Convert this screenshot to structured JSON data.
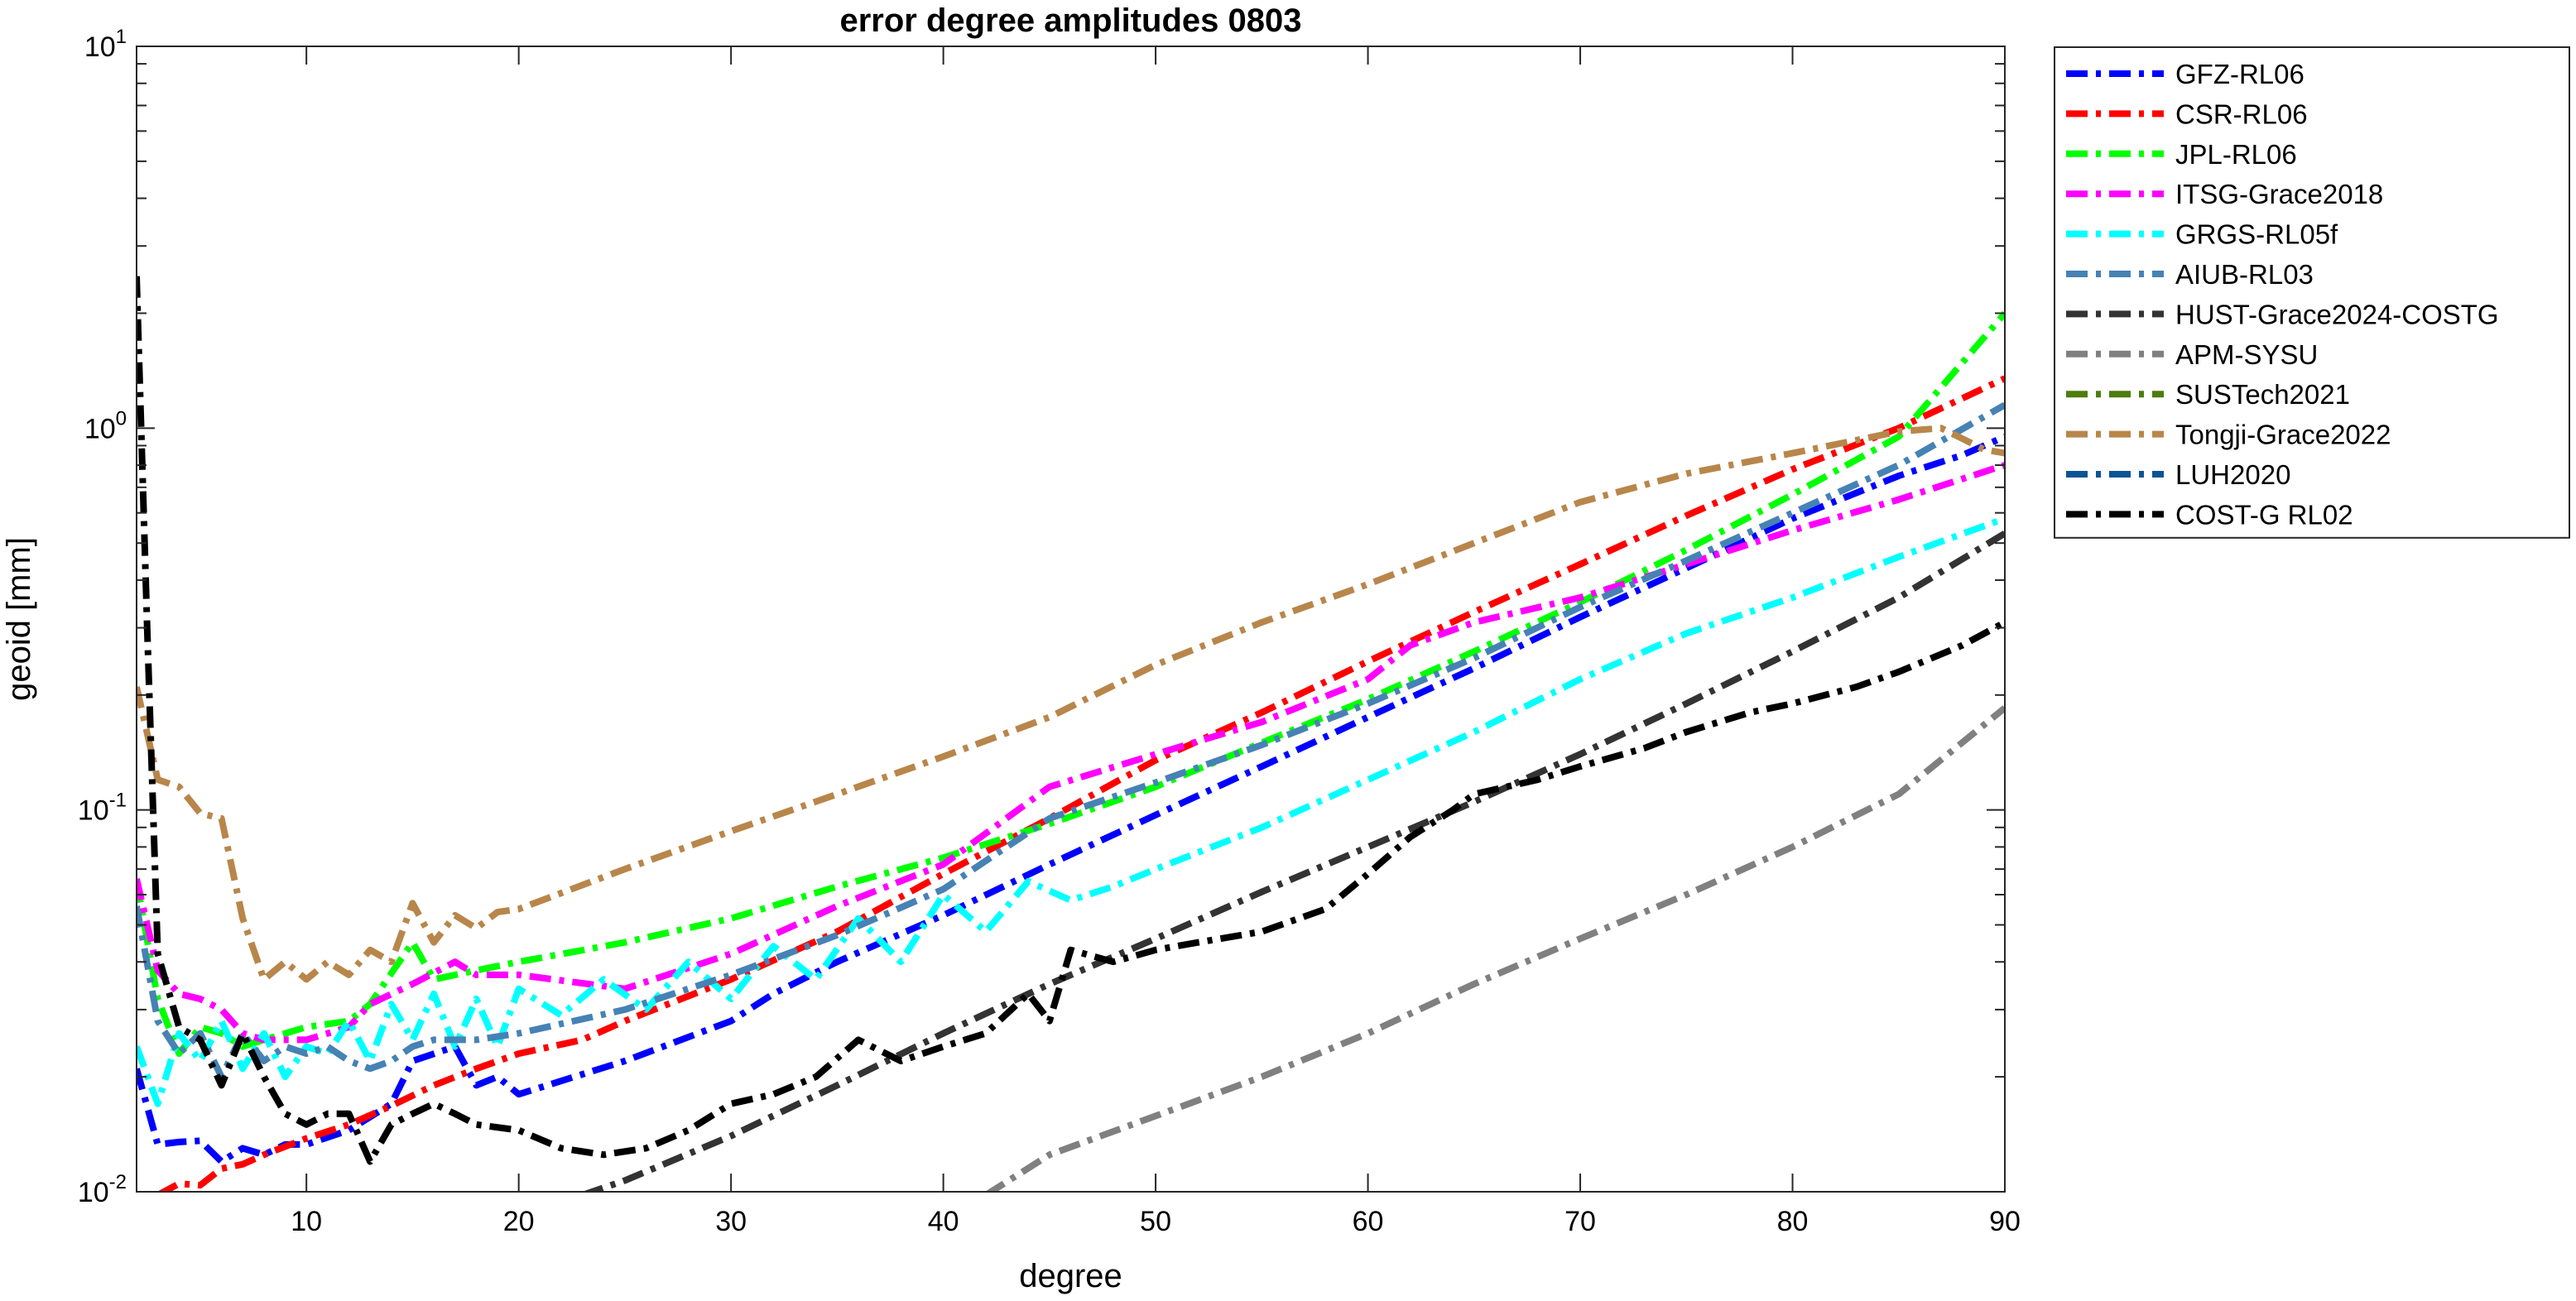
{
  "chart_data": {
    "type": "line",
    "title": "error degree amplitudes 0803",
    "xlabel": "degree",
    "ylabel": "geoid [mm]",
    "xlim": [
      2,
      90
    ],
    "ylim": [
      0.01,
      10
    ],
    "yscale": "log",
    "grid": false,
    "legend_position": "outside-right",
    "x_ticks": [
      10,
      20,
      30,
      40,
      50,
      60,
      70,
      80,
      90
    ],
    "x_tick_labels": [
      "10",
      "20",
      "30",
      "40",
      "50",
      "60",
      "70",
      "80",
      "90"
    ],
    "y_tick_labels": [
      {
        "base": "10",
        "exp": "1",
        "value": 10
      },
      {
        "base": "10",
        "exp": "0",
        "value": 1
      },
      {
        "base": "10",
        "exp": "-1",
        "value": 0.1
      },
      {
        "base": "10",
        "exp": "-2",
        "value": 0.01
      }
    ],
    "series": [
      {
        "name": "GFZ-RL06",
        "color": "#0000ff",
        "points": [
          [
            2,
            0.021
          ],
          [
            3,
            0.0133
          ],
          [
            4,
            0.0135
          ],
          [
            5,
            0.0136
          ],
          [
            6,
            0.012
          ],
          [
            7,
            0.013
          ],
          [
            8,
            0.0125
          ],
          [
            9,
            0.0133
          ],
          [
            10,
            0.0133
          ],
          [
            12,
            0.0145
          ],
          [
            14,
            0.017
          ],
          [
            15,
            0.022
          ],
          [
            17,
            0.024
          ],
          [
            18,
            0.019
          ],
          [
            19,
            0.02
          ],
          [
            20,
            0.018
          ],
          [
            25,
            0.022
          ],
          [
            30,
            0.028
          ],
          [
            32,
            0.033
          ],
          [
            35,
            0.04
          ],
          [
            40,
            0.053
          ],
          [
            45,
            0.072
          ],
          [
            50,
            0.097
          ],
          [
            55,
            0.13
          ],
          [
            60,
            0.175
          ],
          [
            65,
            0.235
          ],
          [
            70,
            0.32
          ],
          [
            75,
            0.43
          ],
          [
            80,
            0.58
          ],
          [
            85,
            0.75
          ],
          [
            88,
            0.85
          ],
          [
            90,
            0.95
          ]
        ]
      },
      {
        "name": "CSR-RL06",
        "color": "#ff0000",
        "points": [
          [
            3,
            0.0098
          ],
          [
            4,
            0.0105
          ],
          [
            5,
            0.0104
          ],
          [
            6,
            0.0115
          ],
          [
            7,
            0.0118
          ],
          [
            8,
            0.0125
          ],
          [
            10,
            0.0138
          ],
          [
            12,
            0.015
          ],
          [
            14,
            0.0168
          ],
          [
            16,
            0.019
          ],
          [
            18,
            0.021
          ],
          [
            20,
            0.023
          ],
          [
            23,
            0.025
          ],
          [
            25,
            0.028
          ],
          [
            30,
            0.036
          ],
          [
            35,
            0.048
          ],
          [
            40,
            0.068
          ],
          [
            45,
            0.095
          ],
          [
            50,
            0.135
          ],
          [
            55,
            0.18
          ],
          [
            60,
            0.245
          ],
          [
            65,
            0.33
          ],
          [
            70,
            0.44
          ],
          [
            75,
            0.59
          ],
          [
            80,
            0.78
          ],
          [
            85,
            1.0
          ],
          [
            90,
            1.35
          ]
        ]
      },
      {
        "name": "JPL-RL06",
        "color": "#00ff00",
        "points": [
          [
            2,
            0.065
          ],
          [
            3,
            0.032
          ],
          [
            4,
            0.023
          ],
          [
            5,
            0.027
          ],
          [
            6,
            0.026
          ],
          [
            7,
            0.024
          ],
          [
            8,
            0.025
          ],
          [
            10,
            0.027
          ],
          [
            12,
            0.028
          ],
          [
            13,
            0.031
          ],
          [
            15,
            0.045
          ],
          [
            16,
            0.036
          ],
          [
            18,
            0.038
          ],
          [
            20,
            0.04
          ],
          [
            25,
            0.045
          ],
          [
            30,
            0.052
          ],
          [
            35,
            0.063
          ],
          [
            40,
            0.075
          ],
          [
            45,
            0.092
          ],
          [
            50,
            0.115
          ],
          [
            55,
            0.15
          ],
          [
            60,
            0.195
          ],
          [
            65,
            0.26
          ],
          [
            70,
            0.35
          ],
          [
            75,
            0.48
          ],
          [
            80,
            0.67
          ],
          [
            85,
            0.95
          ],
          [
            90,
            2.0
          ]
        ]
      },
      {
        "name": "ITSG-Grace2018",
        "color": "#ff00ff",
        "points": [
          [
            2,
            0.066
          ],
          [
            3,
            0.038
          ],
          [
            4,
            0.033
          ],
          [
            5,
            0.032
          ],
          [
            6,
            0.03
          ],
          [
            7,
            0.026
          ],
          [
            8,
            0.025
          ],
          [
            10,
            0.025
          ],
          [
            12,
            0.027
          ],
          [
            13,
            0.031
          ],
          [
            15,
            0.035
          ],
          [
            17,
            0.04
          ],
          [
            18,
            0.037
          ],
          [
            20,
            0.037
          ],
          [
            25,
            0.034
          ],
          [
            30,
            0.042
          ],
          [
            35,
            0.056
          ],
          [
            40,
            0.072
          ],
          [
            45,
            0.115
          ],
          [
            50,
            0.14
          ],
          [
            55,
            0.17
          ],
          [
            60,
            0.22
          ],
          [
            62,
            0.27
          ],
          [
            65,
            0.31
          ],
          [
            70,
            0.36
          ],
          [
            75,
            0.44
          ],
          [
            80,
            0.54
          ],
          [
            85,
            0.65
          ],
          [
            90,
            0.8
          ]
        ]
      },
      {
        "name": "GRGS-RL05f",
        "color": "#00ffff",
        "points": [
          [
            2,
            0.024
          ],
          [
            3,
            0.017
          ],
          [
            4,
            0.026
          ],
          [
            5,
            0.022
          ],
          [
            6,
            0.028
          ],
          [
            7,
            0.021
          ],
          [
            8,
            0.026
          ],
          [
            9,
            0.02
          ],
          [
            10,
            0.024
          ],
          [
            11,
            0.023
          ],
          [
            12,
            0.028
          ],
          [
            13,
            0.022
          ],
          [
            14,
            0.031
          ],
          [
            15,
            0.025
          ],
          [
            16,
            0.033
          ],
          [
            17,
            0.024
          ],
          [
            18,
            0.032
          ],
          [
            19,
            0.024
          ],
          [
            20,
            0.034
          ],
          [
            22,
            0.029
          ],
          [
            24,
            0.036
          ],
          [
            26,
            0.03
          ],
          [
            28,
            0.04
          ],
          [
            30,
            0.032
          ],
          [
            32,
            0.044
          ],
          [
            34,
            0.036
          ],
          [
            36,
            0.052
          ],
          [
            38,
            0.04
          ],
          [
            40,
            0.06
          ],
          [
            42,
            0.048
          ],
          [
            44,
            0.065
          ],
          [
            46,
            0.058
          ],
          [
            48,
            0.063
          ],
          [
            50,
            0.07
          ],
          [
            55,
            0.09
          ],
          [
            60,
            0.12
          ],
          [
            65,
            0.16
          ],
          [
            70,
            0.22
          ],
          [
            75,
            0.29
          ],
          [
            80,
            0.36
          ],
          [
            85,
            0.46
          ],
          [
            90,
            0.58
          ]
        ]
      },
      {
        "name": "AIUB-RL03",
        "color": "#4682b4",
        "points": [
          [
            2,
            0.056
          ],
          [
            3,
            0.028
          ],
          [
            4,
            0.023
          ],
          [
            5,
            0.026
          ],
          [
            6,
            0.02
          ],
          [
            7,
            0.026
          ],
          [
            8,
            0.022
          ],
          [
            9,
            0.024
          ],
          [
            10,
            0.023
          ],
          [
            11,
            0.024
          ],
          [
            12,
            0.022
          ],
          [
            13,
            0.021
          ],
          [
            14,
            0.022
          ],
          [
            15,
            0.024
          ],
          [
            16,
            0.025
          ],
          [
            18,
            0.025
          ],
          [
            20,
            0.026
          ],
          [
            25,
            0.03
          ],
          [
            30,
            0.037
          ],
          [
            35,
            0.047
          ],
          [
            40,
            0.062
          ],
          [
            45,
            0.095
          ],
          [
            50,
            0.118
          ],
          [
            55,
            0.148
          ],
          [
            60,
            0.19
          ],
          [
            65,
            0.25
          ],
          [
            70,
            0.34
          ],
          [
            75,
            0.45
          ],
          [
            80,
            0.6
          ],
          [
            85,
            0.8
          ],
          [
            90,
            1.15
          ]
        ]
      },
      {
        "name": "HUST-Grace2024-COSTG",
        "color": "#333333",
        "points": [
          [
            23,
            0.0098
          ],
          [
            25,
            0.0107
          ],
          [
            30,
            0.014
          ],
          [
            35,
            0.019
          ],
          [
            40,
            0.026
          ],
          [
            45,
            0.035
          ],
          [
            50,
            0.046
          ],
          [
            55,
            0.061
          ],
          [
            60,
            0.08
          ],
          [
            65,
            0.105
          ],
          [
            70,
            0.14
          ],
          [
            75,
            0.19
          ],
          [
            80,
            0.26
          ],
          [
            85,
            0.36
          ],
          [
            90,
            0.53
          ]
        ]
      },
      {
        "name": "APM-SYSU",
        "color": "#808080",
        "points": [
          [
            42,
            0.0098
          ],
          [
            45,
            0.0125
          ],
          [
            50,
            0.0158
          ],
          [
            55,
            0.02
          ],
          [
            60,
            0.026
          ],
          [
            65,
            0.035
          ],
          [
            70,
            0.046
          ],
          [
            75,
            0.06
          ],
          [
            80,
            0.08
          ],
          [
            85,
            0.11
          ],
          [
            90,
            0.185
          ]
        ]
      },
      {
        "name": "SUSTech2021",
        "color": "#4d7c0f",
        "points": []
      },
      {
        "name": "Tongji-Grace2022",
        "color": "#b8864b",
        "points": [
          [
            2,
            0.21
          ],
          [
            3,
            0.12
          ],
          [
            4,
            0.115
          ],
          [
            5,
            0.098
          ],
          [
            6,
            0.095
          ],
          [
            7,
            0.052
          ],
          [
            8,
            0.036
          ],
          [
            9,
            0.04
          ],
          [
            10,
            0.036
          ],
          [
            11,
            0.04
          ],
          [
            12,
            0.037
          ],
          [
            13,
            0.043
          ],
          [
            14,
            0.04
          ],
          [
            15,
            0.057
          ],
          [
            16,
            0.045
          ],
          [
            17,
            0.053
          ],
          [
            18,
            0.049
          ],
          [
            19,
            0.054
          ],
          [
            20,
            0.055
          ],
          [
            25,
            0.07
          ],
          [
            30,
            0.088
          ],
          [
            35,
            0.11
          ],
          [
            40,
            0.138
          ],
          [
            45,
            0.175
          ],
          [
            50,
            0.24
          ],
          [
            55,
            0.31
          ],
          [
            60,
            0.39
          ],
          [
            65,
            0.5
          ],
          [
            70,
            0.64
          ],
          [
            75,
            0.76
          ],
          [
            80,
            0.86
          ],
          [
            85,
            0.98
          ],
          [
            87,
            1.0
          ],
          [
            89,
            0.88
          ],
          [
            90,
            0.86
          ]
        ]
      },
      {
        "name": "LUH2020",
        "color": "#0b5394",
        "points": []
      },
      {
        "name": "COST-G RL02",
        "color": "#000000",
        "points": [
          [
            2,
            2.5
          ],
          [
            2.5,
            0.3
          ],
          [
            3,
            0.042
          ],
          [
            4,
            0.027
          ],
          [
            5,
            0.025
          ],
          [
            6,
            0.019
          ],
          [
            7,
            0.026
          ],
          [
            8,
            0.02
          ],
          [
            9,
            0.016
          ],
          [
            10,
            0.015
          ],
          [
            11,
            0.016
          ],
          [
            12,
            0.016
          ],
          [
            13,
            0.012
          ],
          [
            14,
            0.015
          ],
          [
            15,
            0.016
          ],
          [
            16,
            0.017
          ],
          [
            17,
            0.016
          ],
          [
            18,
            0.015
          ],
          [
            20,
            0.0145
          ],
          [
            22,
            0.013
          ],
          [
            24,
            0.0125
          ],
          [
            26,
            0.013
          ],
          [
            28,
            0.0145
          ],
          [
            30,
            0.017
          ],
          [
            32,
            0.018
          ],
          [
            34,
            0.02
          ],
          [
            36,
            0.025
          ],
          [
            38,
            0.022
          ],
          [
            40,
            0.024
          ],
          [
            42,
            0.026
          ],
          [
            44,
            0.033
          ],
          [
            45,
            0.028
          ],
          [
            46,
            0.043
          ],
          [
            48,
            0.04
          ],
          [
            50,
            0.043
          ],
          [
            52,
            0.045
          ],
          [
            55,
            0.048
          ],
          [
            58,
            0.055
          ],
          [
            60,
            0.068
          ],
          [
            62,
            0.085
          ],
          [
            64,
            0.1
          ],
          [
            65,
            0.11
          ],
          [
            68,
            0.12
          ],
          [
            70,
            0.13
          ],
          [
            73,
            0.145
          ],
          [
            75,
            0.16
          ],
          [
            78,
            0.18
          ],
          [
            80,
            0.19
          ],
          [
            83,
            0.21
          ],
          [
            85,
            0.23
          ],
          [
            88,
            0.27
          ],
          [
            90,
            0.31
          ]
        ]
      }
    ]
  }
}
